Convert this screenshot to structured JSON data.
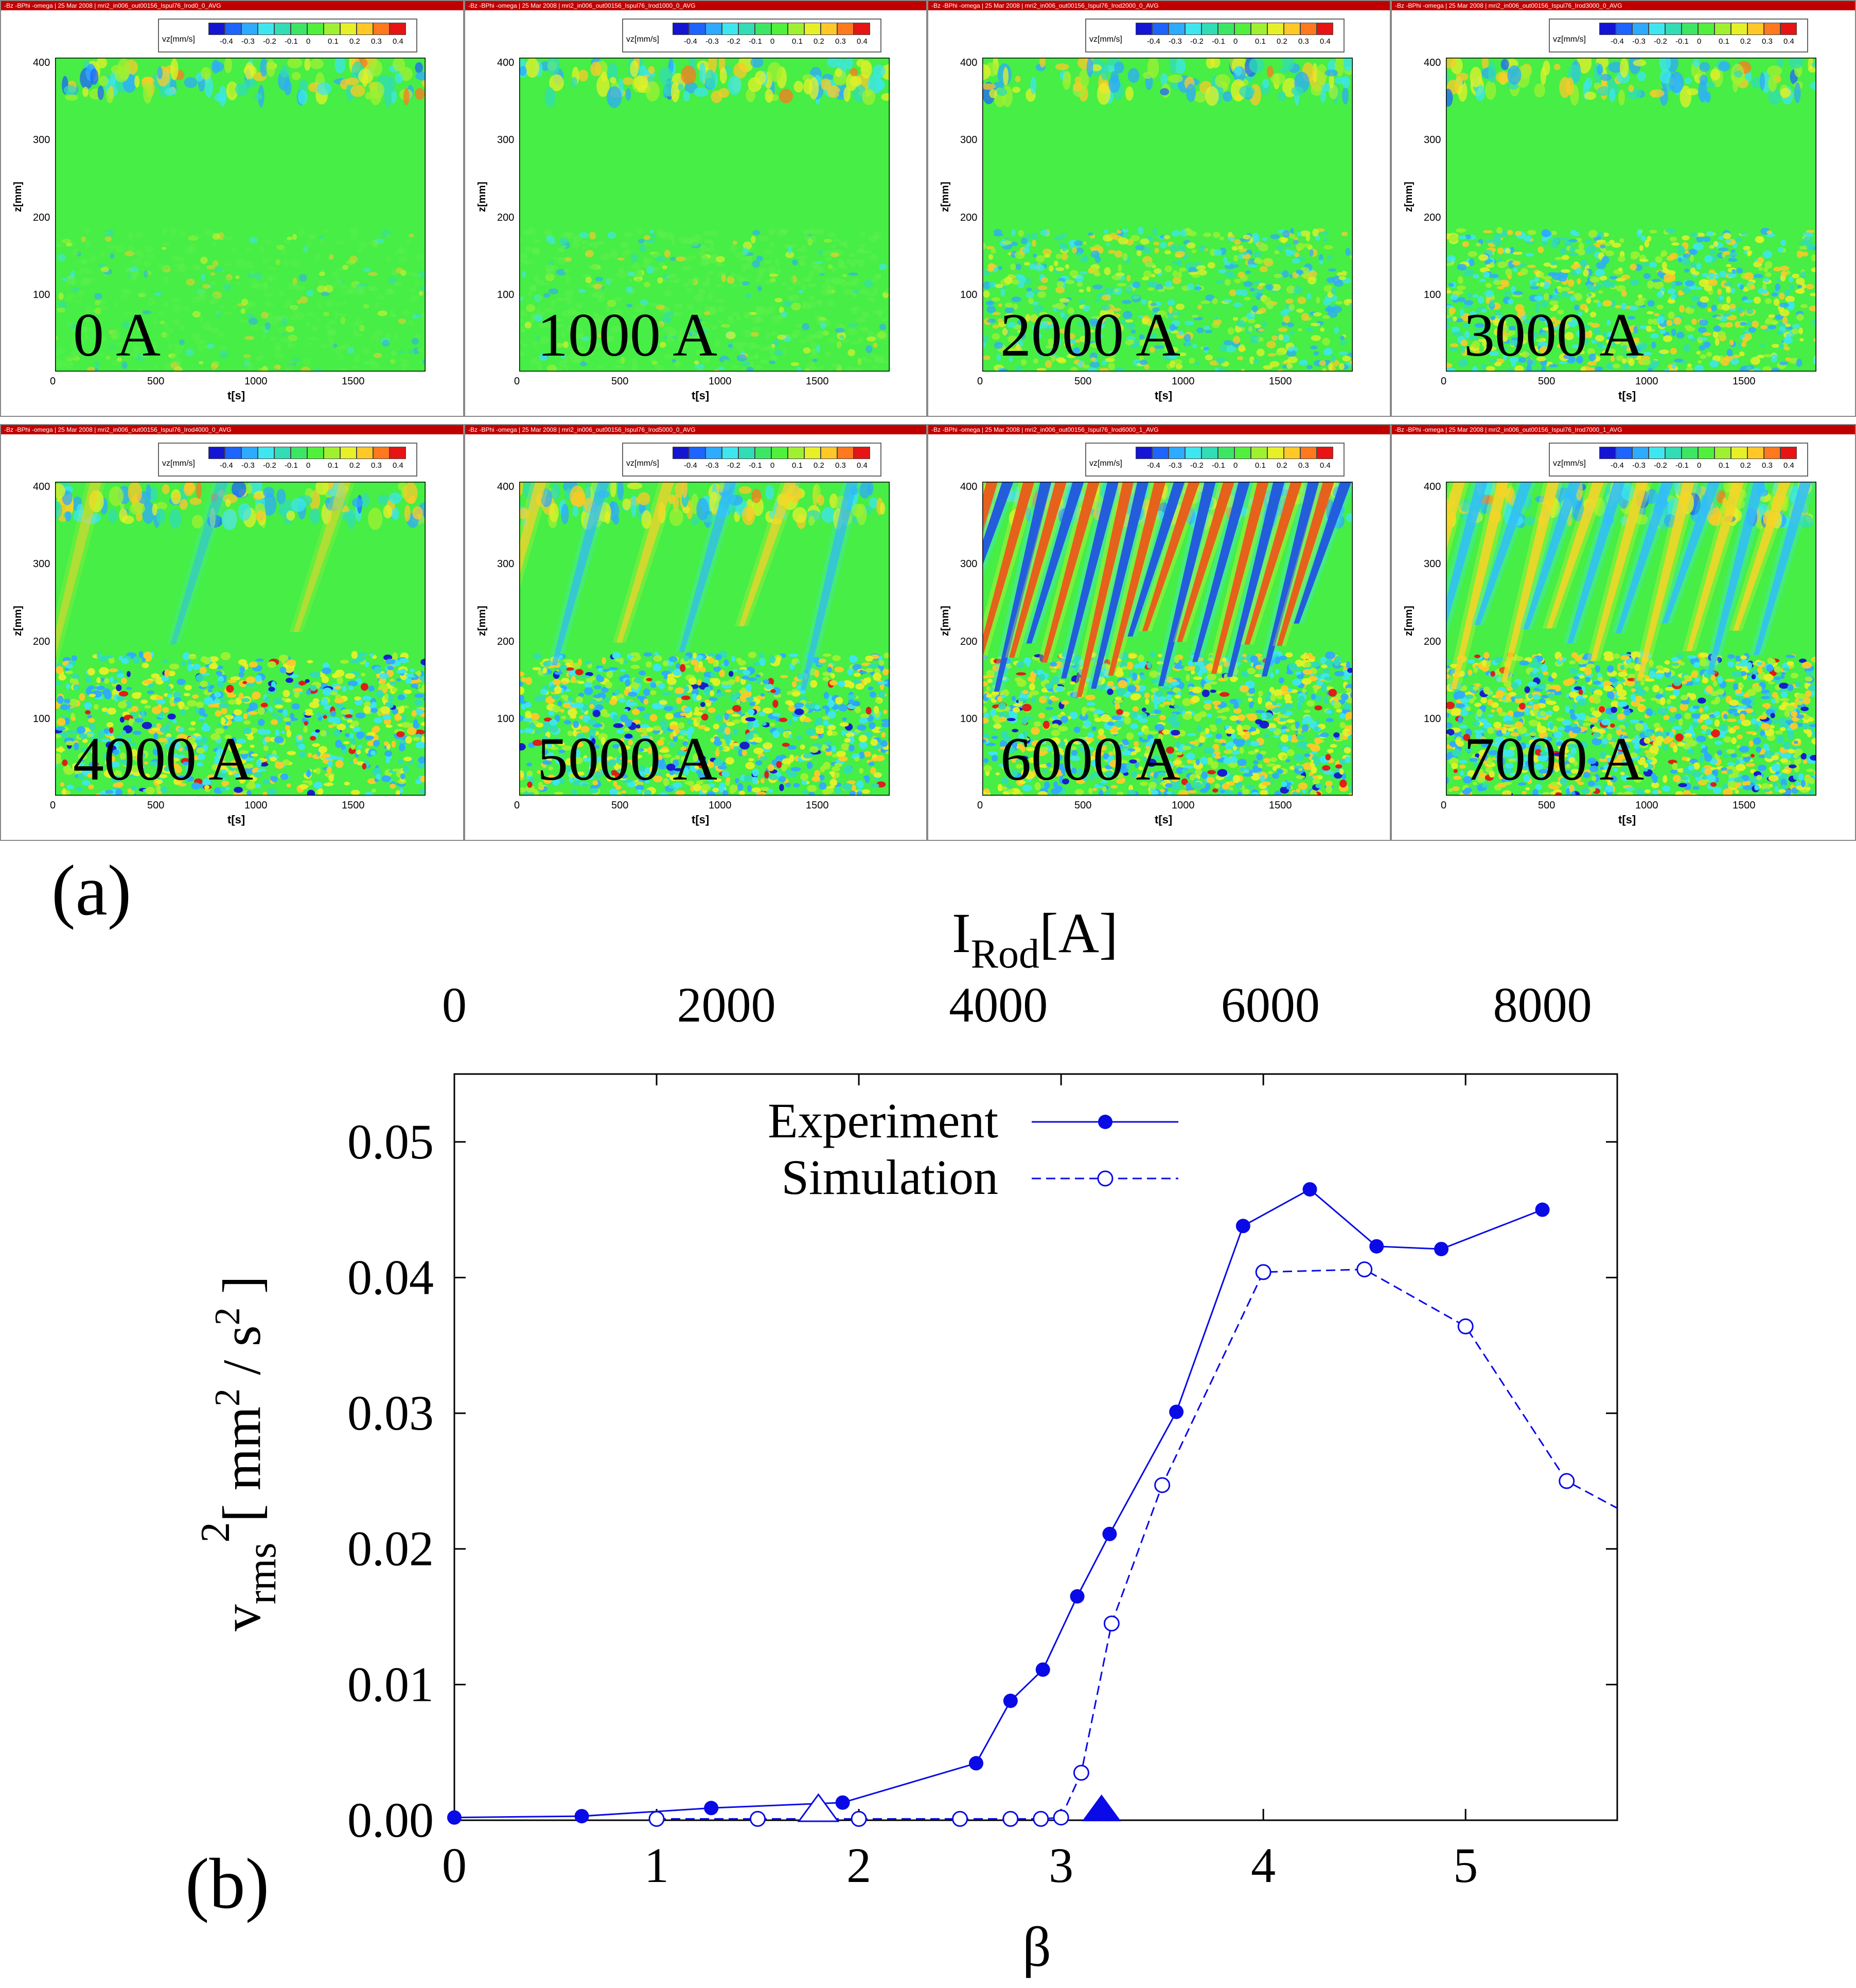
{
  "panel_a": {
    "label": "(a)",
    "panel_title": "-Bz -BPhi -omega | 25 Mar 2008 | mri2_in006_out00156_Ispul76_Irod",
    "title_suffix": "_AVG",
    "legend_label": "vz[mm/s]",
    "color_ticks": [
      "-0.4",
      "-0.3",
      "-0.2",
      "-0.1",
      "0",
      "0.1",
      "0.2",
      "0.3",
      "0.4"
    ],
    "colors": [
      "#1414d2",
      "#1e64ff",
      "#2eaaff",
      "#3ee6f0",
      "#32dcb4",
      "#3ce664",
      "#50f03c",
      "#a0f032",
      "#e6f028",
      "#ffc828",
      "#ff781e",
      "#e61414"
    ],
    "y_axis_label": "z[mm]",
    "x_axis_label": "t[s]",
    "y_ticks": [
      "100",
      "200",
      "300",
      "400"
    ],
    "x_ticks": [
      "0",
      "500",
      "1000",
      "1500"
    ],
    "runs": [
      {
        "current": "0 A",
        "suffix": "0_0"
      },
      {
        "current": "1000 A",
        "suffix": "1000_0"
      },
      {
        "current": "2000 A",
        "suffix": "2000_0"
      },
      {
        "current": "3000 A",
        "suffix": "3000_0"
      },
      {
        "current": "4000 A",
        "suffix": "4000_0"
      },
      {
        "current": "5000 A",
        "suffix": "5000_0"
      },
      {
        "current": "6000 A",
        "suffix": "6000_1"
      },
      {
        "current": "7000 A",
        "suffix": "7000_1"
      }
    ]
  },
  "panel_b": {
    "label": "(b)",
    "top_axis_label_main": "I",
    "top_axis_label_sub": "Rod",
    "top_axis_label_unit": "[A]",
    "ylabel_v": "v",
    "ylabel_sub": "rms",
    "ylabel_sup": "2",
    "ylabel_unit_open": "[ mm",
    "ylabel_unit_sup1": "2",
    "ylabel_unit_mid": " / s",
    "ylabel_unit_sup2": "2",
    "ylabel_unit_close": " ]"
  },
  "chart_data": {
    "type": "line",
    "title": "",
    "xlabel": "β",
    "xlim": [
      0,
      5.75
    ],
    "ylim": [
      0.0,
      0.055
    ],
    "x_ticks": [
      "0",
      "1",
      "2",
      "3",
      "4",
      "5"
    ],
    "y_ticks": [
      "0.00",
      "0.01",
      "0.02",
      "0.03",
      "0.04",
      "0.05"
    ],
    "top_ticks": [
      "0",
      "2000",
      "4000",
      "6000",
      "8000"
    ],
    "legend_position": "top-center",
    "series": [
      {
        "name": "Experiment",
        "color": "#0a0ae6",
        "x": [
          0.0,
          0.63,
          1.27,
          1.92,
          2.58,
          2.75,
          2.91,
          3.08,
          3.24,
          3.57,
          3.9,
          4.23,
          4.56,
          4.88,
          5.38
        ],
        "y": [
          0.0002,
          0.0003,
          0.0009,
          0.0013,
          0.0042,
          0.0088,
          0.0111,
          0.0165,
          0.0211,
          0.0301,
          0.0438,
          0.0465,
          0.0423,
          0.0421,
          0.045
        ]
      },
      {
        "name": "Simulation",
        "color": "#0a0ae6",
        "x": [
          1.0,
          1.5,
          2.0,
          2.5,
          2.75,
          2.9,
          3.0,
          3.1,
          3.25,
          3.5,
          4.0,
          4.5,
          5.0,
          5.5,
          5.75
        ],
        "y": [
          0.0001,
          0.0001,
          0.0001,
          0.0001,
          0.0001,
          0.0001,
          0.0002,
          0.0035,
          0.0145,
          0.0247,
          0.0404,
          0.0406,
          0.0364,
          0.025,
          0.023
        ]
      }
    ],
    "markers": [
      {
        "name": "open-triangle-marker",
        "x": 1.8,
        "y": 0.0
      },
      {
        "name": "filled-triangle-marker",
        "x": 3.2,
        "y": 0.0
      }
    ]
  }
}
